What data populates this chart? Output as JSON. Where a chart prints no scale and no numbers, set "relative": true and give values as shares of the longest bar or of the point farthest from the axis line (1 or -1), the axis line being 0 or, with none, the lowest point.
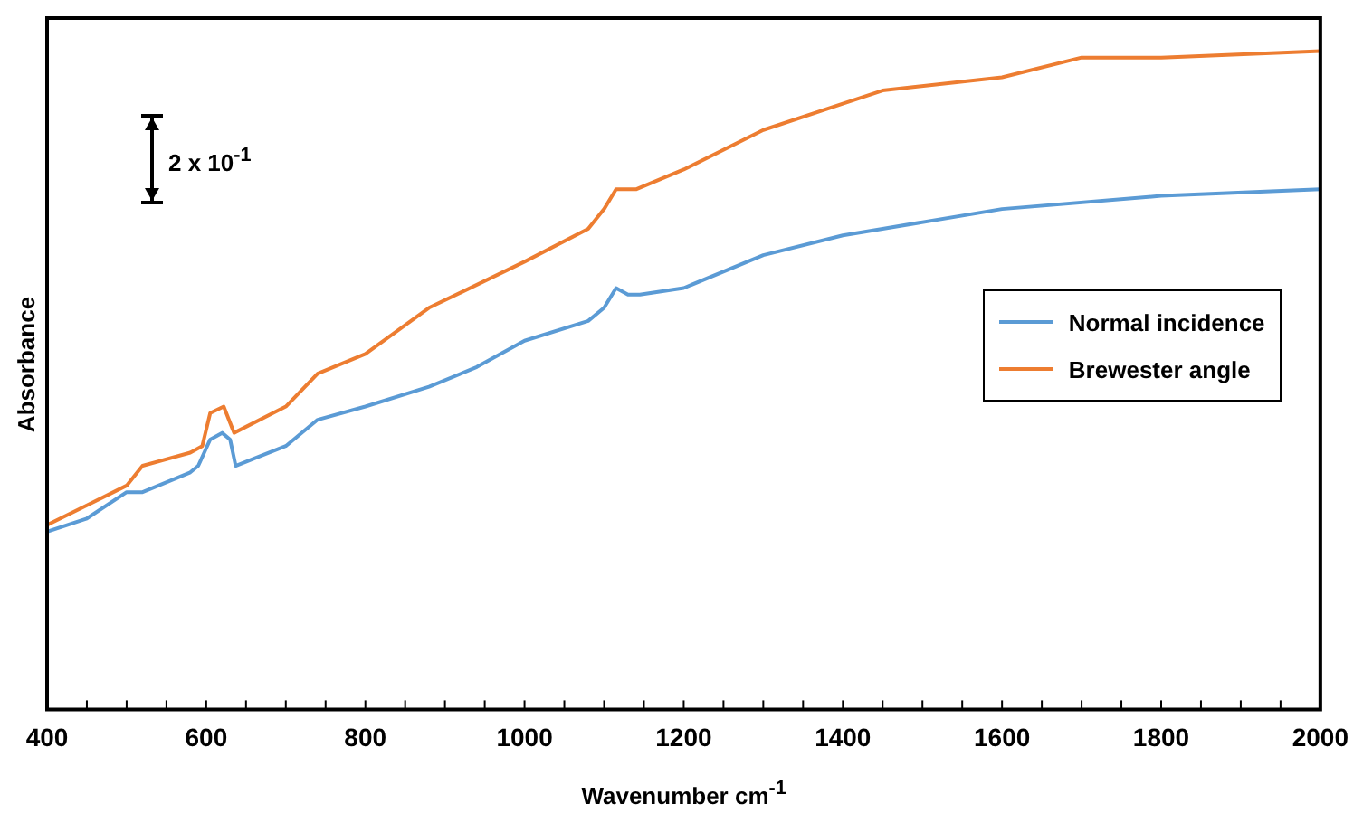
{
  "chart_data": {
    "type": "line",
    "relative": true,
    "xlabel": "Wavenumber cm$^{-1}$",
    "ylabel": "Absorbance",
    "annotations": [
      "2 x 10$^{-1}$"
    ],
    "xlim": [
      400,
      2000
    ],
    "xticks": [
      400,
      {
        "value": 450,
        "label": null
      },
      {
        "value": 500,
        "label": null
      },
      {
        "value": 550,
        "label": null
      },
      600,
      {
        "value": 650,
        "label": null
      },
      {
        "value": 700,
        "label": null
      },
      {
        "value": 750,
        "label": null
      },
      800,
      {
        "value": 850,
        "label": null
      },
      {
        "value": 900,
        "label": null
      },
      {
        "value": 950,
        "label": null
      },
      1000,
      {
        "value": 1050,
        "label": null
      },
      {
        "value": 1100,
        "label": null
      },
      {
        "value": 1150,
        "label": null
      },
      1200,
      {
        "value": 1250,
        "label": null
      },
      {
        "value": 1300,
        "label": null
      },
      {
        "value": 1350,
        "label": null
      },
      1400,
      {
        "value": 1450,
        "label": null
      },
      {
        "value": 1500,
        "label": null
      },
      {
        "value": 1550,
        "label": null
      },
      1600,
      {
        "value": 1650,
        "label": null
      },
      {
        "value": 1700,
        "label": null
      },
      {
        "value": 1750,
        "label": null
      },
      1800,
      {
        "value": 1850,
        "label": null
      },
      {
        "value": 1900,
        "label": null
      },
      {
        "value": 1950,
        "label": null
      },
      2000
    ],
    "grid": false,
    "legend": "right",
    "marker": "none",
    "line_style": "solid",
    "series": [
      {
        "name": "Normal incidence",
        "color": "#5b9bd5",
        "x": [
          400,
          450,
          500,
          520,
          580,
          590,
          605,
          620,
          630,
          637,
          700,
          740,
          800,
          880,
          940,
          1000,
          1080,
          1100,
          1115,
          1130,
          1145,
          1200,
          1300,
          1400,
          1450,
          1600,
          1800,
          2000
        ],
        "values": [
          0.27,
          0.29,
          0.33,
          0.33,
          0.36,
          0.37,
          0.41,
          0.42,
          0.41,
          0.37,
          0.4,
          0.44,
          0.46,
          0.49,
          0.52,
          0.56,
          0.59,
          0.61,
          0.64,
          0.63,
          0.63,
          0.64,
          0.69,
          0.72,
          0.73,
          0.76,
          0.78,
          0.79
        ]
      },
      {
        "name": "Brewester angle",
        "color": "#ed7d31",
        "x": [
          400,
          450,
          500,
          520,
          580,
          595,
          605,
          622,
          635,
          700,
          740,
          800,
          880,
          1000,
          1080,
          1100,
          1115,
          1140,
          1200,
          1300,
          1400,
          1450,
          1600,
          1700,
          1800,
          2000
        ],
        "values": [
          0.28,
          0.31,
          0.34,
          0.37,
          0.39,
          0.4,
          0.45,
          0.46,
          0.42,
          0.46,
          0.51,
          0.54,
          0.61,
          0.68,
          0.73,
          0.76,
          0.79,
          0.79,
          0.82,
          0.88,
          0.92,
          0.94,
          0.96,
          0.99,
          0.99,
          1
        ]
      }
    ]
  }
}
